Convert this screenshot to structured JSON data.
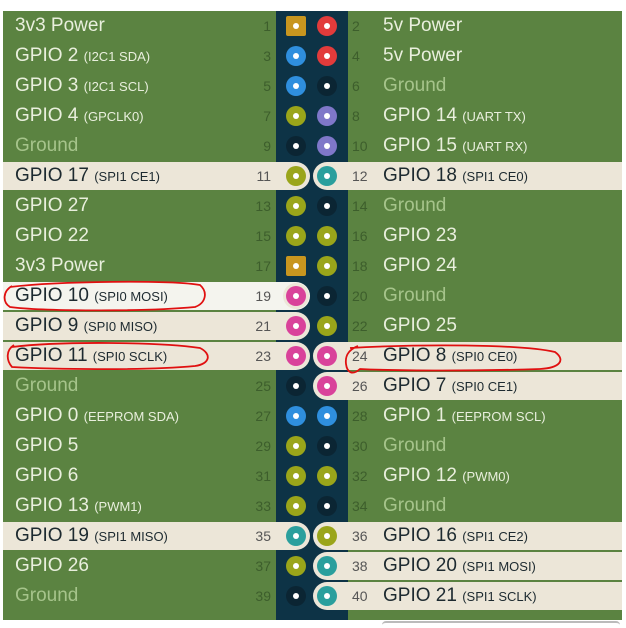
{
  "colors": {
    "board": "#5b8341",
    "strip": "#0d3346",
    "highlight": "#ece6d8",
    "power3v3": "#c8961f",
    "power5v": "#e23b3b",
    "i2c": "#2f8fde",
    "ground": "#0b2533",
    "gpio": "#9aa51a",
    "uart": "#7f77c9",
    "spi0": "#d9429a",
    "spi1": "#2a9f9d",
    "annotation": "#e01010"
  },
  "rows": [
    {
      "left": {
        "num": "1",
        "name": "3v3 Power",
        "sub": "",
        "type": "power3v3"
      },
      "right": {
        "num": "2",
        "name": "5v Power",
        "sub": "",
        "type": "power5v"
      }
    },
    {
      "left": {
        "num": "3",
        "name": "GPIO 2",
        "sub": "(I2C1 SDA)",
        "type": "i2c"
      },
      "right": {
        "num": "4",
        "name": "5v Power",
        "sub": "",
        "type": "power5v"
      }
    },
    {
      "left": {
        "num": "5",
        "name": "GPIO 3",
        "sub": "(I2C1 SCL)",
        "type": "i2c"
      },
      "right": {
        "num": "6",
        "name": "Ground",
        "sub": "",
        "type": "ground"
      }
    },
    {
      "left": {
        "num": "7",
        "name": "GPIO 4",
        "sub": "(GPCLK0)",
        "type": "gpio"
      },
      "right": {
        "num": "8",
        "name": "GPIO 14",
        "sub": "(UART TX)",
        "type": "uart"
      }
    },
    {
      "left": {
        "num": "9",
        "name": "Ground",
        "sub": "",
        "type": "ground"
      },
      "right": {
        "num": "10",
        "name": "GPIO 15",
        "sub": "(UART RX)",
        "type": "uart"
      }
    },
    {
      "left": {
        "num": "11",
        "name": "GPIO 17",
        "sub": "(SPI1 CE1)",
        "type": "gpio",
        "highlight": true
      },
      "right": {
        "num": "12",
        "name": "GPIO 18",
        "sub": "(SPI1 CE0)",
        "type": "spi1",
        "highlight": true
      }
    },
    {
      "left": {
        "num": "13",
        "name": "GPIO 27",
        "sub": "",
        "type": "gpio"
      },
      "right": {
        "num": "14",
        "name": "Ground",
        "sub": "",
        "type": "ground"
      }
    },
    {
      "left": {
        "num": "15",
        "name": "GPIO 22",
        "sub": "",
        "type": "gpio"
      },
      "right": {
        "num": "16",
        "name": "GPIO 23",
        "sub": "",
        "type": "gpio"
      }
    },
    {
      "left": {
        "num": "17",
        "name": "3v3 Power",
        "sub": "",
        "type": "power3v3"
      },
      "right": {
        "num": "18",
        "name": "GPIO 24",
        "sub": "",
        "type": "gpio"
      }
    },
    {
      "left": {
        "num": "19",
        "name": "GPIO 10",
        "sub": "(SPI0 MOSI)",
        "type": "spi0",
        "highlight": true,
        "bright": true
      },
      "right": {
        "num": "20",
        "name": "Ground",
        "sub": "",
        "type": "ground"
      }
    },
    {
      "left": {
        "num": "21",
        "name": "GPIO 9",
        "sub": "(SPI0 MISO)",
        "type": "spi0",
        "highlight": true
      },
      "right": {
        "num": "22",
        "name": "GPIO 25",
        "sub": "",
        "type": "gpio"
      }
    },
    {
      "left": {
        "num": "23",
        "name": "GPIO 11",
        "sub": "(SPI0 SCLK)",
        "type": "spi0",
        "highlight": true
      },
      "right": {
        "num": "24",
        "name": "GPIO 8",
        "sub": "(SPI0 CE0)",
        "type": "spi0",
        "highlight": true
      }
    },
    {
      "left": {
        "num": "25",
        "name": "Ground",
        "sub": "",
        "type": "ground"
      },
      "right": {
        "num": "26",
        "name": "GPIO 7",
        "sub": "(SPI0 CE1)",
        "type": "spi0",
        "highlight": true
      }
    },
    {
      "left": {
        "num": "27",
        "name": "GPIO 0",
        "sub": "(EEPROM SDA)",
        "type": "i2c"
      },
      "right": {
        "num": "28",
        "name": "GPIO 1",
        "sub": "(EEPROM SCL)",
        "type": "i2c"
      }
    },
    {
      "left": {
        "num": "29",
        "name": "GPIO 5",
        "sub": "",
        "type": "gpio"
      },
      "right": {
        "num": "30",
        "name": "Ground",
        "sub": "",
        "type": "ground"
      }
    },
    {
      "left": {
        "num": "31",
        "name": "GPIO 6",
        "sub": "",
        "type": "gpio"
      },
      "right": {
        "num": "32",
        "name": "GPIO 12",
        "sub": "(PWM0)",
        "type": "gpio"
      }
    },
    {
      "left": {
        "num": "33",
        "name": "GPIO 13",
        "sub": "(PWM1)",
        "type": "gpio"
      },
      "right": {
        "num": "34",
        "name": "Ground",
        "sub": "",
        "type": "ground"
      }
    },
    {
      "left": {
        "num": "35",
        "name": "GPIO 19",
        "sub": "(SPI1 MISO)",
        "type": "spi1",
        "highlight": true
      },
      "right": {
        "num": "36",
        "name": "GPIO 16",
        "sub": "(SPI1 CE2)",
        "type": "gpio",
        "highlight": true
      }
    },
    {
      "left": {
        "num": "37",
        "name": "GPIO 26",
        "sub": "",
        "type": "gpio"
      },
      "right": {
        "num": "38",
        "name": "GPIO 20",
        "sub": "(SPI1 MOSI)",
        "type": "spi1",
        "highlight": true
      }
    },
    {
      "left": {
        "num": "39",
        "name": "Ground",
        "sub": "",
        "type": "ground"
      },
      "right": {
        "num": "40",
        "name": "GPIO 21",
        "sub": "(SPI1 SCLK)",
        "type": "spi1",
        "highlight": true
      }
    }
  ],
  "annotations": [
    "GPIO 10",
    "GPIO 11",
    "GPIO 8"
  ]
}
